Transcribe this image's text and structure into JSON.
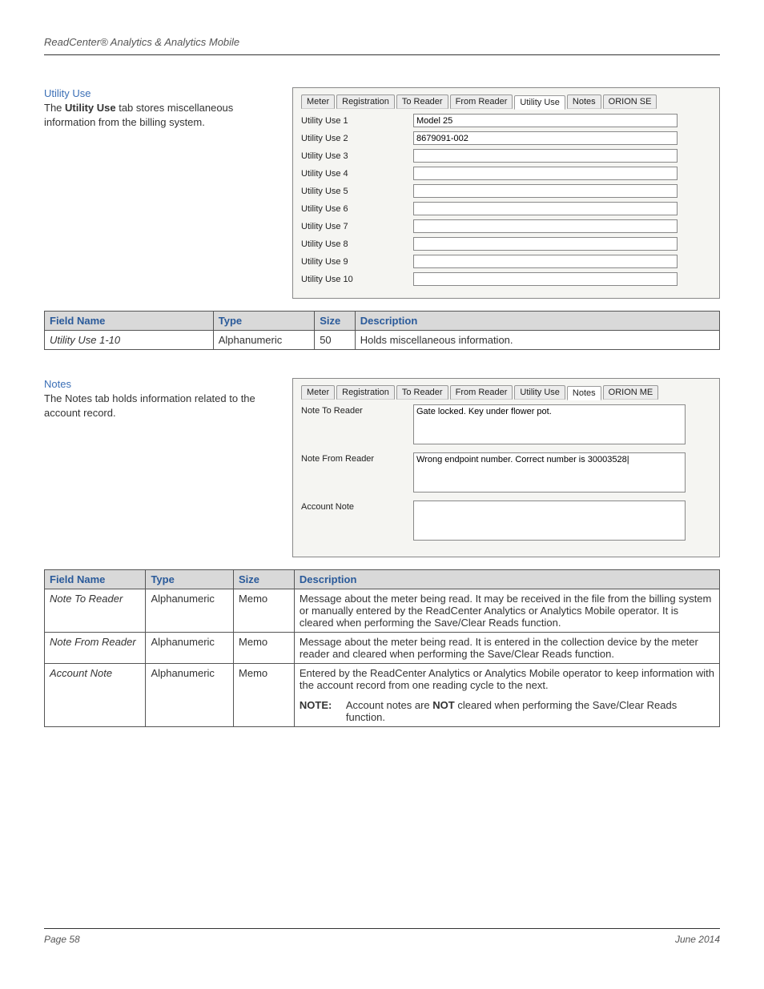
{
  "header": {
    "title": "ReadCenter® Analytics & Analytics Mobile"
  },
  "footer": {
    "page": "Page 58",
    "date": "June 2014"
  },
  "utility": {
    "heading": "Utility Use",
    "desc_pre": "The ",
    "desc_bold": "Utility Use",
    "desc_post": " tab stores miscellaneous information from the billing system.",
    "tabs": [
      "Meter",
      "Registration",
      "To Reader",
      "From Reader",
      "Utility Use",
      "Notes",
      "ORION SE"
    ],
    "active_tab": 4,
    "fields": [
      {
        "label": "Utility Use 1",
        "value": "Model 25"
      },
      {
        "label": "Utility Use 2",
        "value": "8679091-002"
      },
      {
        "label": "Utility Use 3",
        "value": ""
      },
      {
        "label": "Utility Use 4",
        "value": ""
      },
      {
        "label": "Utility Use 5",
        "value": ""
      },
      {
        "label": "Utility Use 6",
        "value": ""
      },
      {
        "label": "Utility Use 7",
        "value": ""
      },
      {
        "label": "Utility Use 8",
        "value": ""
      },
      {
        "label": "Utility Use 9",
        "value": ""
      },
      {
        "label": "Utility Use 10",
        "value": ""
      }
    ],
    "table": {
      "columns": [
        "Field Name",
        "Type",
        "Size",
        "Description"
      ],
      "rows": [
        {
          "fieldname": "Utility Use 1-10",
          "type": "Alphanumeric",
          "size": "50",
          "desc": "Holds miscellaneous information."
        }
      ],
      "col_widths": [
        "25%",
        "15%",
        "6%",
        "54%"
      ]
    }
  },
  "notes": {
    "heading": "Notes",
    "desc": "The Notes tab holds information related to the account record.",
    "tabs": [
      "Meter",
      "Registration",
      "To Reader",
      "From Reader",
      "Utility Use",
      "Notes",
      "ORION ME"
    ],
    "active_tab": 5,
    "fields": [
      {
        "label": "Note To Reader",
        "value": "Gate locked. Key under flower pot."
      },
      {
        "label": "Note From Reader",
        "value": "Wrong endpoint number. Correct number is 30003528|"
      },
      {
        "label": "Account Note",
        "value": ""
      }
    ],
    "table": {
      "columns": [
        "Field Name",
        "Type",
        "Size",
        "Description"
      ],
      "col_widths": [
        "15%",
        "13%",
        "9%",
        "63%"
      ],
      "rows": [
        {
          "fieldname": "Note To Reader",
          "type": "Alphanumeric",
          "size": "Memo",
          "desc": "Message about the meter being read. It may be received in the file from the billing system or manually entered by the ReadCenter Analytics or Analytics Mobile operator. It is cleared when performing the Save/Clear Reads function."
        },
        {
          "fieldname": "Note From Reader",
          "type": "Alphanumeric",
          "size": "Memo",
          "desc": "Message about the meter being read. It is entered in the collection device by the meter reader and cleared when performing the Save/Clear Reads function."
        },
        {
          "fieldname": "Account Note",
          "type": "Alphanumeric",
          "size": "Memo",
          "desc": "Entered by the ReadCenter Analytics or Analytics Mobile operator to keep information with the account record from one reading cycle to the next.",
          "note": {
            "label": "NOTE:",
            "text_pre": "Account notes are ",
            "text_bold": "NOT",
            "text_post": " cleared when performing the Save/Clear Reads function."
          }
        }
      ]
    }
  }
}
